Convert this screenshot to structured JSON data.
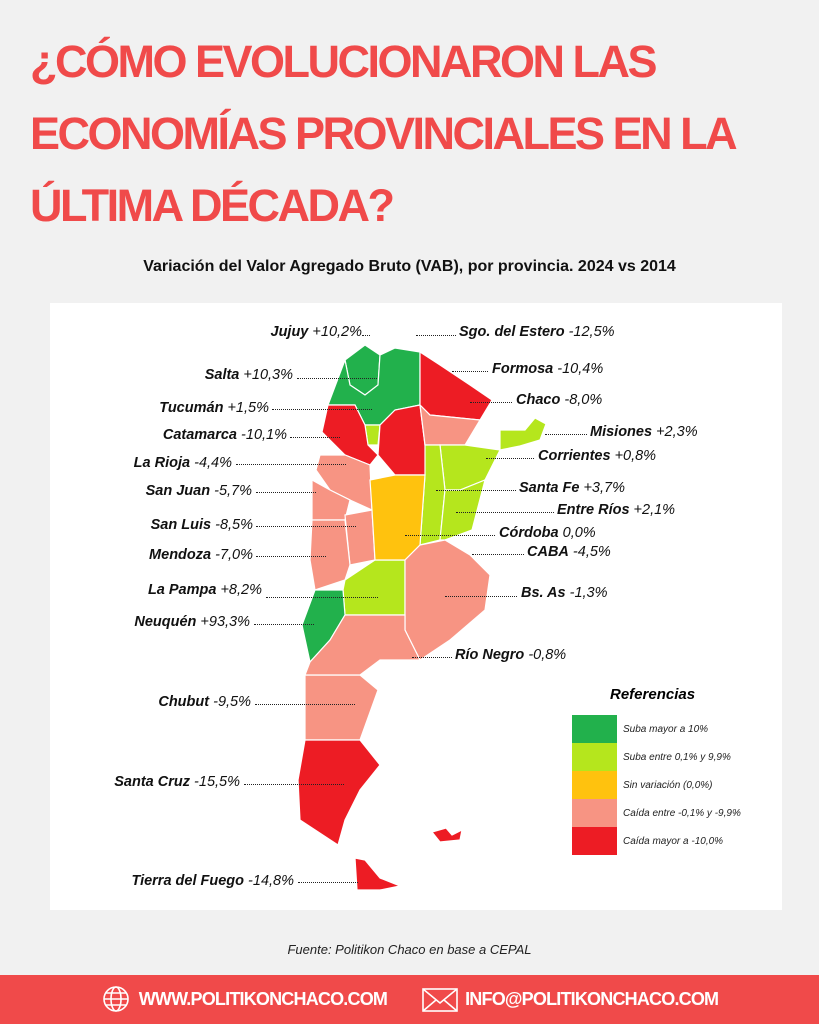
{
  "title": [
    "¿CÓMO EVOLUCIONARON LAS",
    "ECONOMÍAS PROVINCIALES EN LA",
    "ÚLTIMA DÉCADA?"
  ],
  "subtitle": "Variación del Valor Agregado Bruto (VAB), por provincia. 2024 vs 2014",
  "colors": {
    "up_big": "#22b14c",
    "up": "#b5e61d",
    "zero": "#ffc20e",
    "down": "#f79483",
    "down_big": "#ed1c24",
    "accent": "#f04a4a"
  },
  "provinces": [
    {
      "name": "Jujuy",
      "value": "+10,2%",
      "cat": "up_big"
    },
    {
      "name": "Salta",
      "value": "+10,3%",
      "cat": "up_big"
    },
    {
      "name": "Tucumán",
      "value": "+1,5%",
      "cat": "up"
    },
    {
      "name": "Catamarca",
      "value": "-10,1%",
      "cat": "down_big"
    },
    {
      "name": "La Rioja",
      "value": "-4,4%",
      "cat": "down"
    },
    {
      "name": "San Juan",
      "value": "-5,7%",
      "cat": "down"
    },
    {
      "name": "San Luis",
      "value": "-8,5%",
      "cat": "down"
    },
    {
      "name": "Mendoza",
      "value": "-7,0%",
      "cat": "down"
    },
    {
      "name": "La Pampa",
      "value": "+8,2%",
      "cat": "up"
    },
    {
      "name": "Neuquén",
      "value": "+93,3%",
      "cat": "up_big"
    },
    {
      "name": "Chubut",
      "value": "-9,5%",
      "cat": "down"
    },
    {
      "name": "Santa Cruz",
      "value": "-15,5%",
      "cat": "down_big"
    },
    {
      "name": "Tierra del Fuego",
      "value": "-14,8%",
      "cat": "down_big"
    },
    {
      "name": "Sgo. del Estero",
      "value": "-12,5%",
      "cat": "down_big"
    },
    {
      "name": "Formosa",
      "value": "-10,4%",
      "cat": "down_big"
    },
    {
      "name": "Chaco",
      "value": "-8,0%",
      "cat": "down"
    },
    {
      "name": "Misiones",
      "value": "+2,3%",
      "cat": "up"
    },
    {
      "name": "Corrientes",
      "value": "+0,8%",
      "cat": "up"
    },
    {
      "name": "Santa Fe",
      "value": "+3,7%",
      "cat": "up"
    },
    {
      "name": "Entre Ríos",
      "value": "+2,1%",
      "cat": "up"
    },
    {
      "name": "Córdoba",
      "value": "0,0%",
      "cat": "zero"
    },
    {
      "name": "CABA",
      "value": "-4,5%",
      "cat": "down"
    },
    {
      "name": "Bs. As",
      "value": "-1,3%",
      "cat": "down"
    },
    {
      "name": "Río Negro",
      "value": "-0,8%",
      "cat": "down"
    }
  ],
  "legend": {
    "title": "Referencias",
    "items": [
      {
        "label": "Suba mayor a 10%",
        "cat": "up_big"
      },
      {
        "label": "Suba entre 0,1% y 9,9%",
        "cat": "up"
      },
      {
        "label": "Sin variación (0,0%)",
        "cat": "zero"
      },
      {
        "label": "Caída entre -0,1% y -9,9%",
        "cat": "down"
      },
      {
        "label": "Caída mayor a -10,0%",
        "cat": "down_big"
      }
    ]
  },
  "source": "Fuente: Politikon Chaco en base a CEPAL",
  "footer": {
    "website": "WWW.POLITIKONCHACO.COM",
    "email": "INFO@POLITIKONCHACO.COM"
  }
}
